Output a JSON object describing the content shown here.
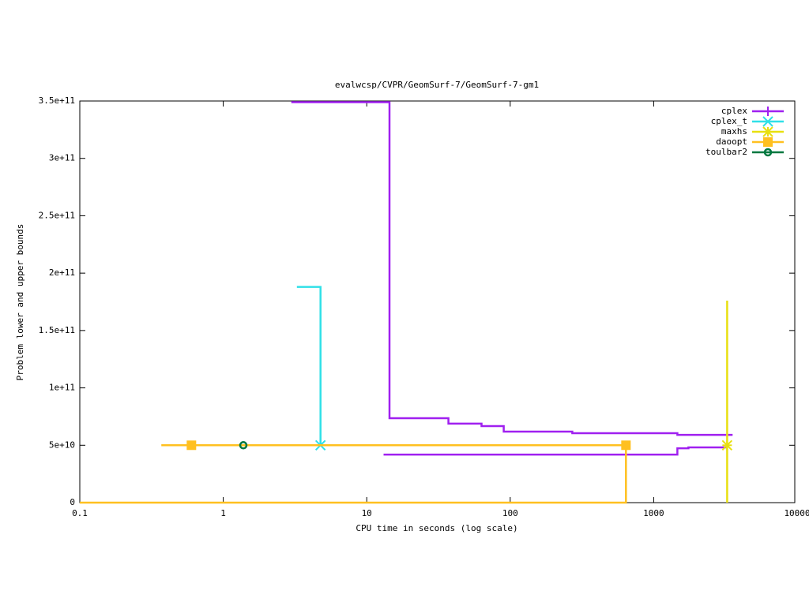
{
  "chart_data": {
    "type": "line",
    "title": "evalwcsp/CVPR/GeomSurf-7/GeomSurf-7-gm1",
    "x_label": "CPU time in seconds (log scale)",
    "y_label": "Problem lower and upper bounds",
    "x_scale": "log",
    "xlim": [
      0.1,
      10000
    ],
    "xticks": [
      0.1,
      1,
      10,
      100,
      1000,
      10000
    ],
    "ylim": [
      0,
      350000000000.0
    ],
    "yticks": [
      {
        "value": 0,
        "label": "0"
      },
      {
        "value": 50000000000.0,
        "label": "5e+10"
      },
      {
        "value": 100000000000.0,
        "label": "1e+11"
      },
      {
        "value": 150000000000.0,
        "label": "1.5e+11"
      },
      {
        "value": 200000000000.0,
        "label": "2e+11"
      },
      {
        "value": 250000000000.0,
        "label": "2.5e+11"
      },
      {
        "value": 300000000000.0,
        "label": "3e+11"
      },
      {
        "value": 350000000000.0,
        "label": "3.5e+11"
      }
    ],
    "legend": "top-right",
    "series": [
      {
        "name": "cplex",
        "color": "#a020f0",
        "point_type": "plus",
        "x": [
          2.98,
          14.4,
          14.4,
          37.1,
          37.1,
          63.1,
          63.1,
          90.1,
          90.1,
          271,
          271,
          1462,
          1462,
          3550,
          null,
          13.1,
          1462,
          1462,
          1746,
          1746,
          3206
        ],
        "values": [
          349000000000.0,
          349000000000.0,
          73600000000.0,
          73600000000.0,
          68800000000.0,
          68800000000.0,
          66700000000.0,
          66700000000.0,
          61900000000.0,
          61900000000.0,
          60500000000.0,
          60500000000.0,
          59100000000.0,
          59100000000.0,
          null,
          41900000000.0,
          41900000000.0,
          47400000000.0,
          47400000000.0,
          48100000000.0,
          48100000000.0
        ],
        "markers": {
          "x": [],
          "values": []
        }
      },
      {
        "name": "cplex_t",
        "color": "#30e0e8",
        "point_type": "cross",
        "x": [
          3.26,
          4.76,
          4.76
        ],
        "values": [
          188000000000.0,
          188000000000.0,
          50000000000.0
        ],
        "markers": {
          "x": [
            4.76
          ],
          "values": [
            50000000000.0
          ]
        }
      },
      {
        "name": "maxhs",
        "color": "#e8e010",
        "point_type": "star",
        "x": [
          3250,
          3250
        ],
        "values": [
          176000000000.0,
          0
        ],
        "markers": {
          "x": [
            3250
          ],
          "values": [
            50000000000.0
          ]
        }
      },
      {
        "name": "daoopt",
        "color": "#ffc020",
        "point_type": "square",
        "x": [
          0.37,
          641,
          641,
          0.1
        ],
        "values": [
          50000000000.0,
          50000000000.0,
          0,
          0
        ],
        "markers": {
          "x": [
            0.6,
            641
          ],
          "values": [
            50000000000.0,
            50000000000.0
          ]
        }
      },
      {
        "name": "toulbar2",
        "color": "#007840",
        "point_type": "circle",
        "x": [],
        "values": [],
        "markers": {
          "x": [
            1.38
          ],
          "values": [
            50000000000.0
          ]
        }
      }
    ]
  }
}
